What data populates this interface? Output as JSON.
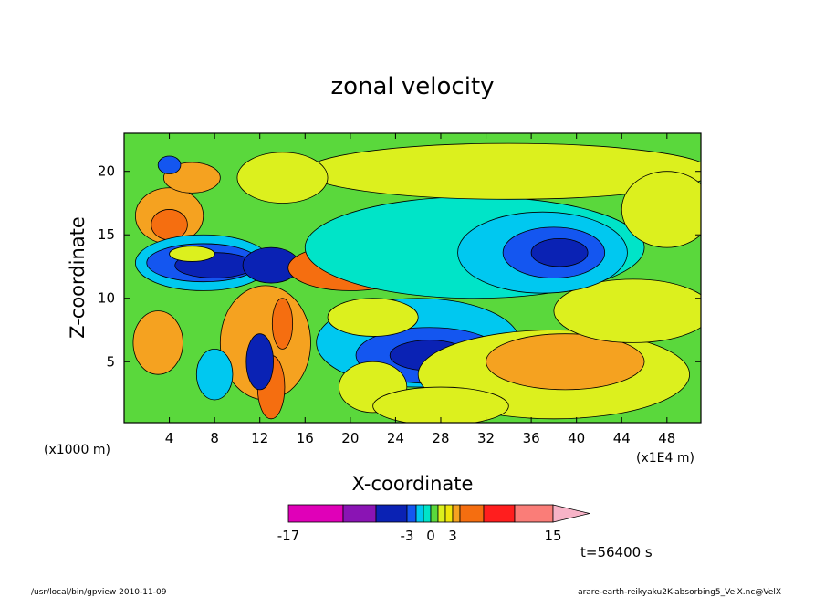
{
  "chart_data": {
    "type": "heatmap",
    "title": "zonal velocity",
    "xlabel": "X-coordinate",
    "ylabel": "Z-coordinate",
    "x_unit": "(x1E4 m)",
    "y_unit": "(x1000 m)",
    "xlim": [
      0,
      51
    ],
    "ylim": [
      0.2,
      23
    ],
    "x_ticks": [
      "4",
      "8",
      "12",
      "16",
      "20",
      "24",
      "28",
      "32",
      "36",
      "40",
      "44",
      "48"
    ],
    "y_ticks": [
      "5",
      "10",
      "15",
      "20"
    ],
    "x_tick_values": [
      4,
      8,
      12,
      16,
      20,
      24,
      28,
      32,
      36,
      40,
      44,
      48
    ],
    "y_tick_values": [
      5,
      10,
      15,
      20
    ],
    "colorbar": {
      "levels": [
        -17,
        -11,
        -7,
        -3,
        -2,
        -1,
        0,
        1,
        2,
        3,
        5,
        9,
        15
      ],
      "labels": [
        "-17",
        "-3",
        "0",
        "3",
        "15"
      ],
      "label_values": [
        -17,
        -3,
        0,
        3,
        15
      ],
      "colors": [
        "#e000b8",
        "#8a14b4",
        "#0a22b4",
        "#1456f0",
        "#00c8f0",
        "#00e4c8",
        "#5ad83c",
        "#dcf01e",
        "#f0e60a",
        "#f5a220",
        "#f56e10",
        "#ff1e1e",
        "#fa7d78"
      ]
    },
    "background_level": "#5ad83c",
    "regions": [
      {
        "x": 4,
        "z": 16.5,
        "rx": 3,
        "rz": 2.2,
        "color": "#f5a220"
      },
      {
        "x": 4,
        "z": 15.8,
        "rx": 1.6,
        "rz": 1.2,
        "color": "#f56e10"
      },
      {
        "x": 7,
        "z": 12.8,
        "rx": 6,
        "rz": 2.2,
        "color": "#00c8f0"
      },
      {
        "x": 7,
        "z": 12.8,
        "rx": 5,
        "rz": 1.5,
        "color": "#1456f0"
      },
      {
        "x": 8,
        "z": 12.6,
        "rx": 3.5,
        "rz": 1.0,
        "color": "#0a22b4"
      },
      {
        "x": 13,
        "z": 12.6,
        "rx": 2.5,
        "rz": 1.4,
        "color": "#0a22b4"
      },
      {
        "x": 20,
        "z": 12.4,
        "rx": 5.5,
        "rz": 1.8,
        "color": "#f56e10"
      },
      {
        "x": 22,
        "z": 12.4,
        "rx": 2.5,
        "rz": 0.9,
        "color": "#ff1e1e"
      },
      {
        "x": 6,
        "z": 13.5,
        "rx": 2,
        "rz": 0.6,
        "color": "#dcf01e"
      },
      {
        "x": 3,
        "z": 6.5,
        "rx": 2.2,
        "rz": 2.5,
        "color": "#f5a220"
      },
      {
        "x": 12.5,
        "z": 6.5,
        "rx": 4,
        "rz": 4.5,
        "color": "#f5a220"
      },
      {
        "x": 13,
        "z": 3,
        "rx": 1.2,
        "rz": 2.5,
        "color": "#f56e10"
      },
      {
        "x": 12,
        "z": 5,
        "rx": 1.2,
        "rz": 2.2,
        "color": "#0a22b4"
      },
      {
        "x": 14,
        "z": 8,
        "rx": 0.9,
        "rz": 2.0,
        "color": "#f56e10"
      },
      {
        "x": 8,
        "z": 4,
        "rx": 1.6,
        "rz": 2.0,
        "color": "#00c8f0"
      },
      {
        "x": 26,
        "z": 6.5,
        "rx": 9,
        "rz": 3.5,
        "color": "#00c8f0"
      },
      {
        "x": 27,
        "z": 5.5,
        "rx": 6.5,
        "rz": 2.2,
        "color": "#1456f0"
      },
      {
        "x": 27,
        "z": 5.5,
        "rx": 3.5,
        "rz": 1.2,
        "color": "#0a22b4"
      },
      {
        "x": 38,
        "z": 4,
        "rx": 12,
        "rz": 3.5,
        "color": "#dcf01e"
      },
      {
        "x": 39,
        "z": 5,
        "rx": 7,
        "rz": 2.2,
        "color": "#f5a220"
      },
      {
        "x": 45,
        "z": 9,
        "rx": 7,
        "rz": 2.5,
        "color": "#dcf01e"
      },
      {
        "x": 31,
        "z": 14,
        "rx": 15,
        "rz": 4,
        "color": "#00e4c8"
      },
      {
        "x": 37,
        "z": 13.6,
        "rx": 7.5,
        "rz": 3.2,
        "color": "#00c8f0"
      },
      {
        "x": 38,
        "z": 13.6,
        "rx": 4.5,
        "rz": 2.0,
        "color": "#1456f0"
      },
      {
        "x": 38.5,
        "z": 13.6,
        "rx": 2.5,
        "rz": 1.1,
        "color": "#0a22b4"
      },
      {
        "x": 34,
        "z": 20,
        "rx": 18,
        "rz": 2.2,
        "color": "#dcf01e"
      },
      {
        "x": 14,
        "z": 19.5,
        "rx": 4,
        "rz": 2,
        "color": "#dcf01e"
      },
      {
        "x": 6,
        "z": 19.5,
        "rx": 2.5,
        "rz": 1.2,
        "color": "#f5a220"
      },
      {
        "x": 48,
        "z": 17,
        "rx": 4,
        "rz": 3,
        "color": "#dcf01e"
      },
      {
        "x": 4,
        "z": 20.5,
        "rx": 1.0,
        "rz": 0.7,
        "color": "#1456f0"
      },
      {
        "x": 22,
        "z": 8.5,
        "rx": 4,
        "rz": 1.5,
        "color": "#dcf01e"
      },
      {
        "x": 22,
        "z": 3,
        "rx": 3,
        "rz": 2,
        "color": "#dcf01e"
      },
      {
        "x": 28,
        "z": 1.5,
        "rx": 6,
        "rz": 1.5,
        "color": "#dcf01e"
      }
    ]
  },
  "page": {
    "time_label": "t=56400 s",
    "footer_left": "/usr/local/bin/gpview   2010-11-09",
    "footer_right": "arare-earth-reikyaku2K-absorbing5_VelX.nc@VelX"
  }
}
